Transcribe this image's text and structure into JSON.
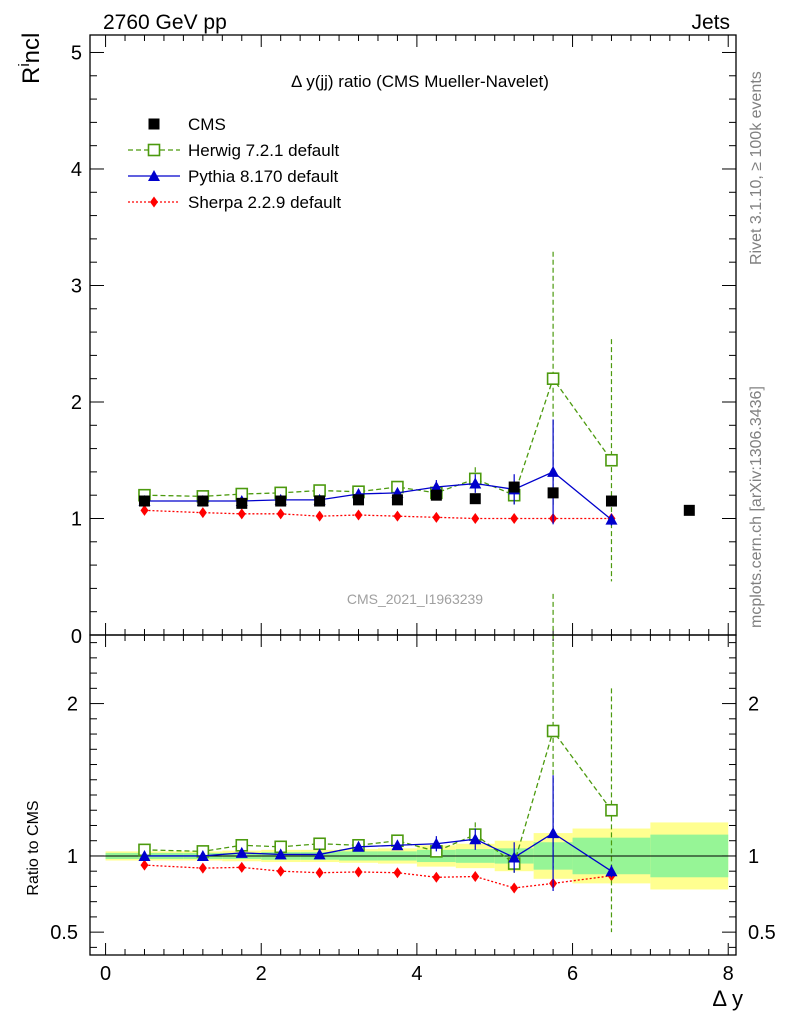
{
  "header": {
    "left": "2760 GeV pp",
    "right": "Jets"
  },
  "side_text": {
    "top": "Rivet 3.1.10, ≥ 100k events",
    "bottom": "mcplots.cern.ch [arXiv:1306.3436]"
  },
  "chart_data": {
    "type": "scatter",
    "title": "Δ y(jj) ratio (CMS Mueller-Navelet)",
    "watermark": "CMS_2021_I1963239",
    "ylabel_main": "Rincl",
    "ylabel_ratio": "Ratio to CMS",
    "xlabel": "Δ y",
    "xlim": [
      -0.2,
      8.1
    ],
    "ylim_main": [
      0,
      5.15
    ],
    "ylim_ratio": [
      0.35,
      2.45
    ],
    "xticks": [
      0,
      2,
      4,
      6,
      8
    ],
    "yticks_main": [
      1,
      2,
      3,
      4,
      5
    ],
    "yticks_ratio": [
      0.5,
      1,
      2
    ],
    "legend": [
      "CMS",
      "Herwig 7.2.1 default",
      "Pythia 8.170 default",
      "Sherpa 2.2.9 default"
    ],
    "data_bins": {
      "edges": [
        0.0,
        0.5,
        1.0,
        1.5,
        2.0,
        2.5,
        3.0,
        3.5,
        4.0,
        4.5,
        5.0,
        5.5,
        6.0,
        7.0,
        8.0
      ],
      "band_inner": [
        0.02,
        0.02,
        0.02,
        0.02,
        0.025,
        0.025,
        0.03,
        0.03,
        0.04,
        0.045,
        0.05,
        0.09,
        0.12,
        0.14
      ],
      "band_outer": [
        0.03,
        0.03,
        0.03,
        0.035,
        0.04,
        0.04,
        0.045,
        0.05,
        0.07,
        0.08,
        0.1,
        0.15,
        0.18,
        0.22
      ]
    },
    "series": [
      {
        "name": "CMS",
        "color": "#000000",
        "x": [
          0.5,
          1.25,
          1.75,
          2.25,
          2.75,
          3.25,
          3.75,
          4.25,
          4.75,
          5.25,
          5.75,
          6.5,
          7.5
        ],
        "y": [
          1.15,
          1.15,
          1.13,
          1.15,
          1.15,
          1.16,
          1.16,
          1.2,
          1.17,
          1.27,
          1.22,
          1.15,
          1.07
        ],
        "err": [
          0.01,
          0.01,
          0.01,
          0.01,
          0.01,
          0.01,
          0.01,
          0.01,
          0.01,
          0.01,
          0.01,
          0.01,
          0.01
        ],
        "ratio": [
          1,
          1,
          1,
          1,
          1,
          1,
          1,
          1,
          1,
          1,
          1,
          1,
          1
        ],
        "ratio_err": [
          0,
          0,
          0,
          0,
          0,
          0,
          0,
          0,
          0,
          0,
          0,
          0,
          0
        ]
      },
      {
        "name": "Herwig 7.2.1 default",
        "color": "#4c9a0e",
        "x": [
          0.5,
          1.25,
          1.75,
          2.25,
          2.75,
          3.25,
          3.75,
          4.25,
          4.75,
          5.25,
          5.75,
          6.5
        ],
        "y": [
          1.2,
          1.19,
          1.21,
          1.22,
          1.24,
          1.23,
          1.27,
          1.22,
          1.34,
          1.2,
          2.2,
          1.5
        ],
        "err": [
          0.02,
          0.02,
          0.02,
          0.02,
          0.02,
          0.02,
          0.03,
          0.04,
          0.1,
          0.08,
          1.09,
          1.04
        ],
        "ratio": [
          1.04,
          1.03,
          1.07,
          1.06,
          1.08,
          1.07,
          1.1,
          1.03,
          1.14,
          0.95,
          1.82,
          1.3
        ],
        "ratio_err": [
          0.015,
          0.015,
          0.015,
          0.015,
          0.015,
          0.015,
          0.02,
          0.03,
          0.08,
          0.06,
          0.9,
          0.8
        ]
      },
      {
        "name": "Pythia 8.170 default",
        "color": "#0000cc",
        "x": [
          0.5,
          1.25,
          1.75,
          2.25,
          2.75,
          3.25,
          3.75,
          4.25,
          4.75,
          5.25,
          5.75,
          6.5
        ],
        "y": [
          1.15,
          1.15,
          1.15,
          1.16,
          1.16,
          1.21,
          1.22,
          1.27,
          1.3,
          1.25,
          1.4,
          0.99
        ],
        "err": [
          0.01,
          0.01,
          0.01,
          0.01,
          0.01,
          0.02,
          0.02,
          0.06,
          0.08,
          0.13,
          0.45,
          0.05
        ],
        "ratio": [
          1.0,
          1.0,
          1.02,
          1.01,
          1.01,
          1.06,
          1.07,
          1.08,
          1.11,
          0.99,
          1.15,
          0.9
        ],
        "ratio_err": [
          0.01,
          0.01,
          0.01,
          0.01,
          0.01,
          0.02,
          0.02,
          0.05,
          0.07,
          0.1,
          0.38,
          0.04
        ]
      },
      {
        "name": "Sherpa 2.2.9 default",
        "color": "#ff0000",
        "x": [
          0.5,
          1.25,
          1.75,
          2.25,
          2.75,
          3.25,
          3.75,
          4.25,
          4.75,
          5.25,
          5.75,
          6.5
        ],
        "y": [
          1.07,
          1.05,
          1.04,
          1.04,
          1.02,
          1.03,
          1.02,
          1.01,
          1.0,
          1.0,
          1.0,
          1.0
        ],
        "err": [
          0.01,
          0.01,
          0.01,
          0.01,
          0.01,
          0.01,
          0.01,
          0.01,
          0.01,
          0.01,
          0.01,
          0.01
        ],
        "ratio": [
          0.94,
          0.92,
          0.925,
          0.9,
          0.89,
          0.895,
          0.89,
          0.86,
          0.865,
          0.79,
          0.82,
          0.87
        ],
        "ratio_err": [
          0.008,
          0.008,
          0.008,
          0.008,
          0.008,
          0.008,
          0.008,
          0.008,
          0.008,
          0.008,
          0.008,
          0.008
        ]
      }
    ]
  }
}
